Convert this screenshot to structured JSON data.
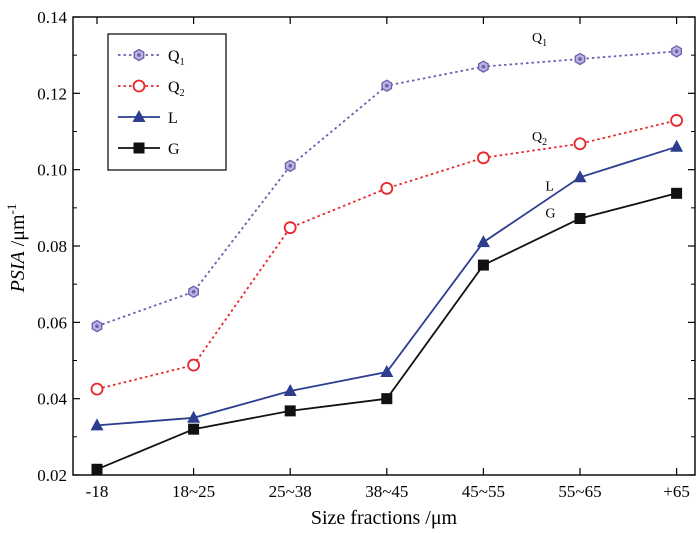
{
  "chart_data": {
    "type": "line",
    "categories": [
      "-18",
      "18~25",
      "25~38",
      "38~45",
      "45~55",
      "55~65",
      "+65"
    ],
    "xlabel": "Size fractions /μm",
    "ylabel": {
      "main": "PSIA",
      "unit": " /μm",
      "sup": "-1"
    },
    "ylim": [
      0.02,
      0.14
    ],
    "yticks": [
      "0.02",
      "0.04",
      "0.06",
      "0.08",
      "0.10",
      "0.12",
      "0.14"
    ],
    "legend_position": "top-left",
    "series": [
      {
        "key": "Q1",
        "name": "Q",
        "sub": "1",
        "color": "#6a5fb0",
        "marker": "hex-dot",
        "dash": "dot",
        "values": [
          0.059,
          0.068,
          0.101,
          0.122,
          0.127,
          0.129,
          0.131
        ]
      },
      {
        "key": "Q2",
        "name": "Q",
        "sub": "2",
        "color": "#e8262a",
        "marker": "open-circle",
        "dash": "dot",
        "values": [
          0.0425,
          0.0488,
          0.0848,
          0.0951,
          0.1031,
          0.1068,
          0.1129
        ]
      },
      {
        "key": "L",
        "name": "L",
        "sub": "",
        "color": "#2e3e8f",
        "marker": "triangle",
        "dash": "solid",
        "values": [
          0.033,
          0.035,
          0.042,
          0.047,
          0.081,
          0.098,
          0.106
        ]
      },
      {
        "key": "G",
        "name": "G",
        "sub": "",
        "color": "#111111",
        "marker": "square",
        "dash": "solid",
        "values": [
          0.0215,
          0.032,
          0.0368,
          0.04,
          0.075,
          0.0872,
          0.0938
        ]
      }
    ],
    "annotations": [
      {
        "series": "Q1",
        "text": "Q",
        "sub": "1",
        "at_category": "55~65",
        "value": 0.1335
      },
      {
        "series": "Q2",
        "text": "Q",
        "sub": "2",
        "at_category": "55~65",
        "value": 0.1075
      },
      {
        "series": "L",
        "text": "L",
        "sub": "",
        "at_category": "45~55",
        "value": 0.0945
      },
      {
        "series": "G",
        "text": "G",
        "sub": "",
        "at_category": "45~55",
        "value": 0.0875
      }
    ]
  }
}
